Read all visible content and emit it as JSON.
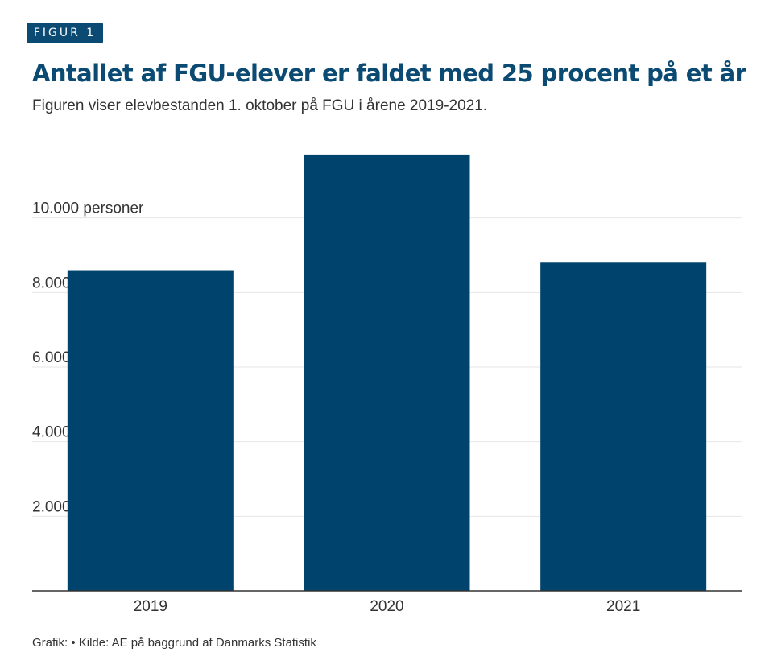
{
  "header": {
    "badge": "FIGUR 1",
    "title": "Antallet af FGU-elever er faldet med 25 procent på et år",
    "subtitle": "Figuren viser elevbestanden 1. oktober på FGU i årene 2019-2021."
  },
  "footer": {
    "source": "Grafik: • Kilde: AE på baggrund af Danmarks Statistik"
  },
  "colors": {
    "bar": "#00436c",
    "grid": "#e6e6e6",
    "axis": "#333333",
    "accent": "#0b4a73"
  },
  "chart_data": {
    "type": "bar",
    "categories": [
      "2019",
      "2020",
      "2021"
    ],
    "values": [
      8600,
      11700,
      8800
    ],
    "ylim": [
      0,
      12000
    ],
    "yticks": [
      {
        "value": 2000,
        "label": "2.000"
      },
      {
        "value": 4000,
        "label": "4.000"
      },
      {
        "value": 6000,
        "label": "6.000"
      },
      {
        "value": 8000,
        "label": "8.000"
      },
      {
        "value": 10000,
        "label": "10.000 personer"
      }
    ],
    "grid": true,
    "legend": "none"
  }
}
